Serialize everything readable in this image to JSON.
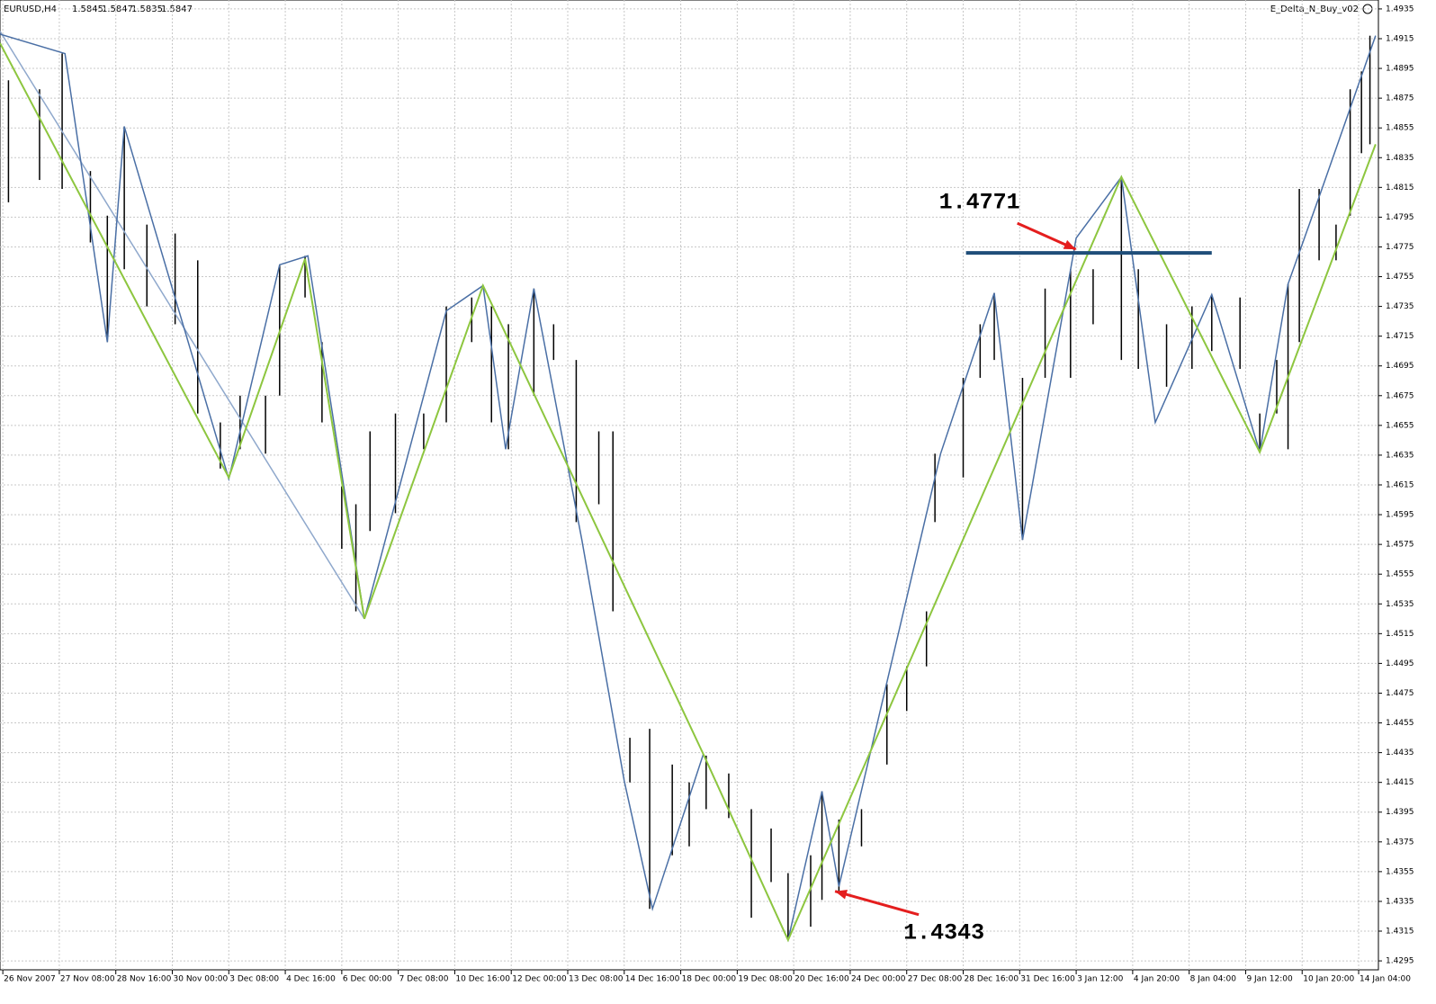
{
  "chart_data": {
    "type": "ohlc",
    "symbol": "EURUSD,H4",
    "quote": [
      1.5845,
      1.5847,
      1.5835,
      1.5847
    ],
    "indicator": "E_Delta_N_Buy_v02",
    "xlim": [
      -1,
      487
    ],
    "ylim": [
      1.4289,
      1.4941
    ],
    "xticks": [
      {
        "value": 0,
        "label": "26 Nov 2007"
      },
      {
        "value": 20,
        "label": "27 Nov 08:00"
      },
      {
        "value": 40,
        "label": "28 Nov 16:00"
      },
      {
        "value": 60,
        "label": "30 Nov 00:00"
      },
      {
        "value": 80,
        "label": "3 Dec 08:00"
      },
      {
        "value": 100,
        "label": "4 Dec 16:00"
      },
      {
        "value": 120,
        "label": "6 Dec 00:00"
      },
      {
        "value": 140,
        "label": "7 Dec 08:00"
      },
      {
        "value": 160,
        "label": "10 Dec 16:00"
      },
      {
        "value": 180,
        "label": "12 Dec 00:00"
      },
      {
        "value": 200,
        "label": "13 Dec 08:00"
      },
      {
        "value": 220,
        "label": "14 Dec 16:00"
      },
      {
        "value": 240,
        "label": "18 Dec 00:00"
      },
      {
        "value": 260,
        "label": "19 Dec 08:00"
      },
      {
        "value": 280,
        "label": "20 Dec 16:00"
      },
      {
        "value": 300,
        "label": "24 Dec 00:00"
      },
      {
        "value": 320,
        "label": "27 Dec 08:00"
      },
      {
        "value": 340,
        "label": "28 Dec 16:00"
      },
      {
        "value": 360,
        "label": "31 Dec 16:00"
      },
      {
        "value": 380,
        "label": "3 Jan 12:00"
      },
      {
        "value": 400,
        "label": "4 Jan 20:00"
      },
      {
        "value": 420,
        "label": "8 Jan 04:00"
      },
      {
        "value": 440,
        "label": "9 Jan 12:00"
      },
      {
        "value": 460,
        "label": "10 Jan 20:00"
      },
      {
        "value": 480,
        "label": "14 Jan 04:00"
      }
    ],
    "yticks": [
      1.4295,
      1.4315,
      1.4335,
      1.4355,
      1.4375,
      1.4395,
      1.4415,
      1.4435,
      1.4455,
      1.4475,
      1.4495,
      1.4515,
      1.4535,
      1.4555,
      1.4575,
      1.4595,
      1.4615,
      1.4635,
      1.4655,
      1.4675,
      1.4695,
      1.4715,
      1.4735,
      1.4755,
      1.4775,
      1.4795,
      1.4815,
      1.4835,
      1.4855,
      1.4875,
      1.4895,
      1.4915,
      1.4935
    ],
    "grid": true,
    "bar_color": "#000000",
    "bars": {
      "x": [
        2,
        13,
        21,
        31,
        37,
        43,
        51,
        61,
        69,
        77,
        84,
        93,
        98,
        107,
        113,
        120,
        125,
        130,
        139,
        149,
        157,
        166,
        173,
        179,
        188,
        195,
        203,
        211,
        216,
        222,
        229,
        237,
        243,
        249,
        257,
        265,
        272,
        278,
        286,
        290,
        296,
        304,
        313,
        320,
        327,
        330,
        340,
        346,
        351,
        361,
        369,
        378,
        386,
        396,
        402,
        412,
        421,
        428,
        438,
        445,
        451,
        455,
        459,
        466,
        472,
        477,
        481,
        484
      ],
      "high": [
        1.4887,
        1.4881,
        1.4905,
        1.4826,
        1.4796,
        1.4856,
        1.479,
        1.4784,
        1.4766,
        1.4657,
        1.4675,
        1.4675,
        1.4763,
        1.4769,
        1.4711,
        1.4614,
        1.4602,
        1.4651,
        1.4663,
        1.4663,
        1.4735,
        1.4741,
        1.4735,
        1.4723,
        1.4747,
        1.4723,
        1.4699,
        1.4651,
        1.4651,
        1.4445,
        1.4451,
        1.4427,
        1.4415,
        1.4433,
        1.4421,
        1.4397,
        1.4384,
        1.4354,
        1.4366,
        1.4409,
        1.439,
        1.4397,
        1.4481,
        1.4493,
        1.453,
        1.4636,
        1.4687,
        1.4723,
        1.4744,
        1.4687,
        1.4747,
        1.476,
        1.476,
        1.4822,
        1.476,
        1.4723,
        1.4735,
        1.4743,
        1.4741,
        1.4663,
        1.4699,
        1.475,
        1.4814,
        1.4814,
        1.479,
        1.4881,
        1.4893,
        1.4917
      ],
      "low": [
        1.4805,
        1.482,
        1.4814,
        1.4778,
        1.4711,
        1.476,
        1.4735,
        1.4723,
        1.4663,
        1.4626,
        1.4639,
        1.4636,
        1.4675,
        1.4741,
        1.4657,
        1.4572,
        1.453,
        1.4584,
        1.4596,
        1.4639,
        1.4657,
        1.4711,
        1.4657,
        1.4639,
        1.4675,
        1.4699,
        1.459,
        1.4602,
        1.453,
        1.4415,
        1.433,
        1.4366,
        1.4372,
        1.4397,
        1.4391,
        1.4324,
        1.4348,
        1.4309,
        1.4318,
        1.4336,
        1.4342,
        1.4372,
        1.4427,
        1.4463,
        1.4493,
        1.459,
        1.462,
        1.4687,
        1.4699,
        1.4578,
        1.4687,
        1.4687,
        1.4723,
        1.4699,
        1.4693,
        1.4681,
        1.4693,
        1.4705,
        1.4693,
        1.4637,
        1.4663,
        1.4639,
        1.4711,
        1.4766,
        1.4766,
        1.4796,
        1.4838,
        1.4844
      ]
    },
    "series": [
      {
        "color": "#8fa8cc",
        "x": [
          -1,
          128
        ],
        "values": [
          1.492,
          1.4525
        ]
      },
      {
        "color": "#4a6fa5",
        "x": [
          -1,
          22,
          37,
          43,
          80,
          98,
          108,
          128,
          157,
          170,
          178,
          188,
          205,
          220,
          230,
          248,
          278,
          290,
          296,
          332,
          351,
          361,
          380,
          396,
          408,
          428,
          445,
          455,
          467,
          486
        ],
        "values": [
          1.4918,
          1.4905,
          1.4711,
          1.4856,
          1.4619,
          1.4763,
          1.4769,
          1.4525,
          1.4732,
          1.4749,
          1.4639,
          1.4747,
          1.4578,
          1.4416,
          1.433,
          1.4434,
          1.4309,
          1.4409,
          1.4345,
          1.4636,
          1.4744,
          1.4578,
          1.4781,
          1.4822,
          1.4657,
          1.4743,
          1.4637,
          1.475,
          1.4814,
          1.4917
        ]
      },
      {
        "color": "#8dc63f",
        "x": [
          -1,
          80,
          107,
          128,
          170,
          248,
          278,
          396,
          445,
          486
        ],
        "values": [
          1.4912,
          1.462,
          1.4767,
          1.4525,
          1.4749,
          1.4434,
          1.4309,
          1.4822,
          1.4637,
          1.4844
        ]
      }
    ],
    "level": {
      "value": 1.4771,
      "x": [
        341,
        428
      ],
      "color": "#1f4e79"
    },
    "annotation": {
      "value": 1.4343,
      "x": 294
    }
  }
}
